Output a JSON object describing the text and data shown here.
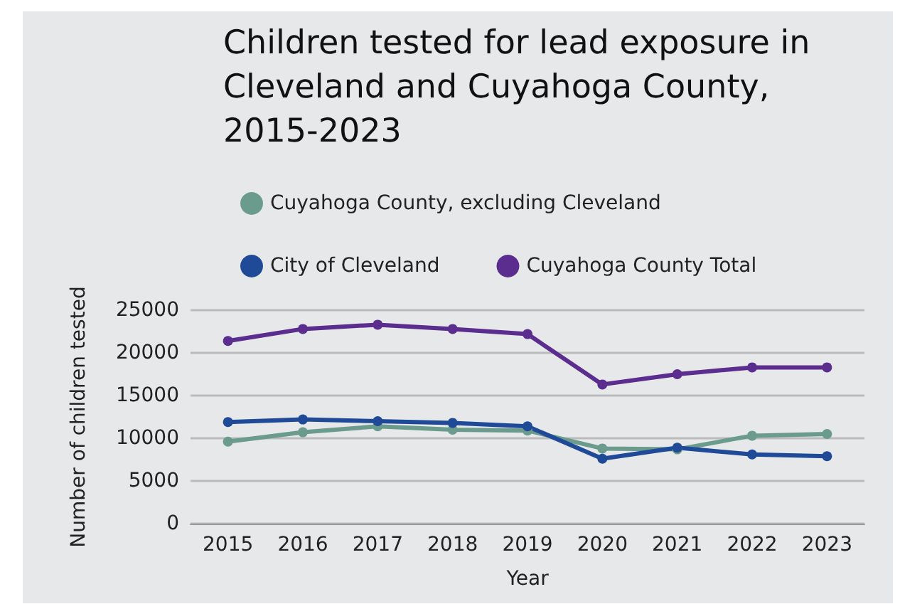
{
  "chart_data": {
    "type": "line",
    "title": "Children tested for lead exposure in Cleveland and Cuyahoga County, 2015-2023",
    "xlabel": "Year",
    "ylabel": "Number of children tested",
    "categories": [
      "2015",
      "2016",
      "2017",
      "2018",
      "2019",
      "2020",
      "2021",
      "2022",
      "2023"
    ],
    "series": [
      {
        "name": "Cuyahoga County, excluding Cleveland",
        "color": "#6b9b8d",
        "values": [
          9600,
          10700,
          11400,
          11000,
          10900,
          8800,
          8700,
          10300,
          10500
        ]
      },
      {
        "name": "City of Cleveland",
        "color": "#1f4a98",
        "values": [
          11900,
          12200,
          12000,
          11800,
          11400,
          7600,
          8900,
          8100,
          7900
        ]
      },
      {
        "name": "Cuyahoga County Total",
        "color": "#5b2d8e",
        "values": [
          21400,
          22800,
          23300,
          22800,
          22200,
          16300,
          17500,
          18300,
          18300
        ]
      }
    ],
    "ylim": [
      0,
      25000
    ],
    "yticks": [
      0,
      5000,
      10000,
      15000,
      20000,
      25000
    ],
    "grid": "y",
    "legend": "top",
    "marker": "circle",
    "line_style": "solid"
  }
}
